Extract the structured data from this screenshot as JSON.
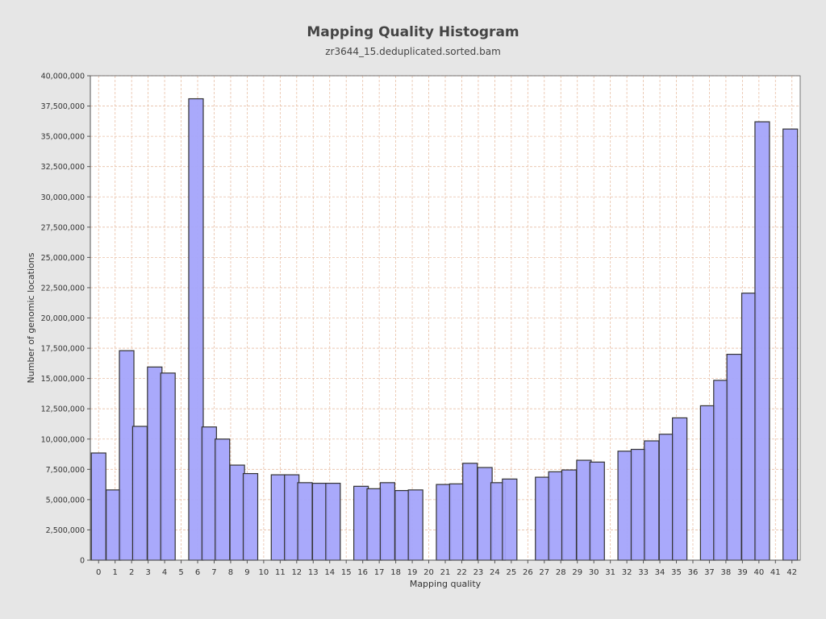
{
  "chart_data": {
    "type": "bar",
    "title": "Mapping Quality Histogram",
    "subtitle": "zr3644_15.deduplicated.sorted.bam",
    "xlabel": "Mapping quality",
    "ylabel": "Number of genomic locations",
    "ylim": [
      0,
      40000000
    ],
    "xlim": [
      -0.5,
      42.5
    ],
    "x_ticks": [
      0,
      1,
      2,
      3,
      4,
      5,
      6,
      7,
      8,
      9,
      10,
      11,
      12,
      13,
      14,
      15,
      16,
      17,
      18,
      19,
      20,
      21,
      22,
      23,
      24,
      25,
      26,
      27,
      28,
      29,
      30,
      31,
      32,
      33,
      34,
      35,
      36,
      37,
      38,
      39,
      40,
      41,
      42
    ],
    "y_ticks": [
      0,
      2500000,
      5000000,
      7500000,
      10000000,
      12500000,
      15000000,
      17500000,
      20000000,
      22500000,
      25000000,
      27500000,
      30000000,
      32500000,
      35000000,
      37500000,
      40000000
    ],
    "y_tick_labels": [
      "0",
      "2,500,000",
      "5,000,000",
      "7,500,000",
      "10,000,000",
      "12,500,000",
      "15,000,000",
      "17,500,000",
      "20,000,000",
      "22,500,000",
      "25,000,000",
      "27,500,000",
      "30,000,000",
      "32,500,000",
      "35,000,000",
      "37,500,000",
      "40,000,000"
    ],
    "grid": true,
    "series": [
      {
        "color": "#a4a4fb",
        "edge_color": "#333333",
        "points": [
          {
            "x": 0.0,
            "y": 8850000
          },
          {
            "x": 0.9,
            "y": 5800000
          },
          {
            "x": 1.7,
            "y": 17300000
          },
          {
            "x": 2.5,
            "y": 11050000
          },
          {
            "x": 3.4,
            "y": 15950000
          },
          {
            "x": 4.2,
            "y": 15450000
          },
          {
            "x": 5.9,
            "y": 38100000
          },
          {
            "x": 6.7,
            "y": 11000000
          },
          {
            "x": 7.5,
            "y": 10000000
          },
          {
            "x": 8.4,
            "y": 7850000
          },
          {
            "x": 9.2,
            "y": 7150000
          },
          {
            "x": 10.9,
            "y": 7050000
          },
          {
            "x": 11.7,
            "y": 7050000
          },
          {
            "x": 12.5,
            "y": 6400000
          },
          {
            "x": 13.4,
            "y": 6350000
          },
          {
            "x": 14.2,
            "y": 6350000
          },
          {
            "x": 15.9,
            "y": 6100000
          },
          {
            "x": 16.7,
            "y": 5900000
          },
          {
            "x": 17.5,
            "y": 6400000
          },
          {
            "x": 18.4,
            "y": 5750000
          },
          {
            "x": 19.2,
            "y": 5800000
          },
          {
            "x": 20.9,
            "y": 6250000
          },
          {
            "x": 21.7,
            "y": 6300000
          },
          {
            "x": 22.5,
            "y": 8000000
          },
          {
            "x": 23.4,
            "y": 7650000
          },
          {
            "x": 24.2,
            "y": 6400000
          },
          {
            "x": 24.9,
            "y": 6700000
          },
          {
            "x": 26.9,
            "y": 6850000
          },
          {
            "x": 27.7,
            "y": 7300000
          },
          {
            "x": 28.5,
            "y": 7450000
          },
          {
            "x": 29.4,
            "y": 8250000
          },
          {
            "x": 30.2,
            "y": 8100000
          },
          {
            "x": 31.9,
            "y": 9000000
          },
          {
            "x": 32.7,
            "y": 9150000
          },
          {
            "x": 33.5,
            "y": 9850000
          },
          {
            "x": 34.4,
            "y": 10400000
          },
          {
            "x": 35.2,
            "y": 11750000
          },
          {
            "x": 36.9,
            "y": 12750000
          },
          {
            "x": 37.7,
            "y": 14850000
          },
          {
            "x": 38.5,
            "y": 17000000
          },
          {
            "x": 39.4,
            "y": 22050000
          },
          {
            "x": 40.2,
            "y": 36200000
          },
          {
            "x": 41.9,
            "y": 35600000
          }
        ]
      }
    ]
  },
  "colors": {
    "page_background": "#e6e6e6",
    "plot_background": "#ffffff",
    "grid": "#e8bfa6",
    "axis": "#555555",
    "text": "#333333",
    "title_text": "#444444"
  }
}
